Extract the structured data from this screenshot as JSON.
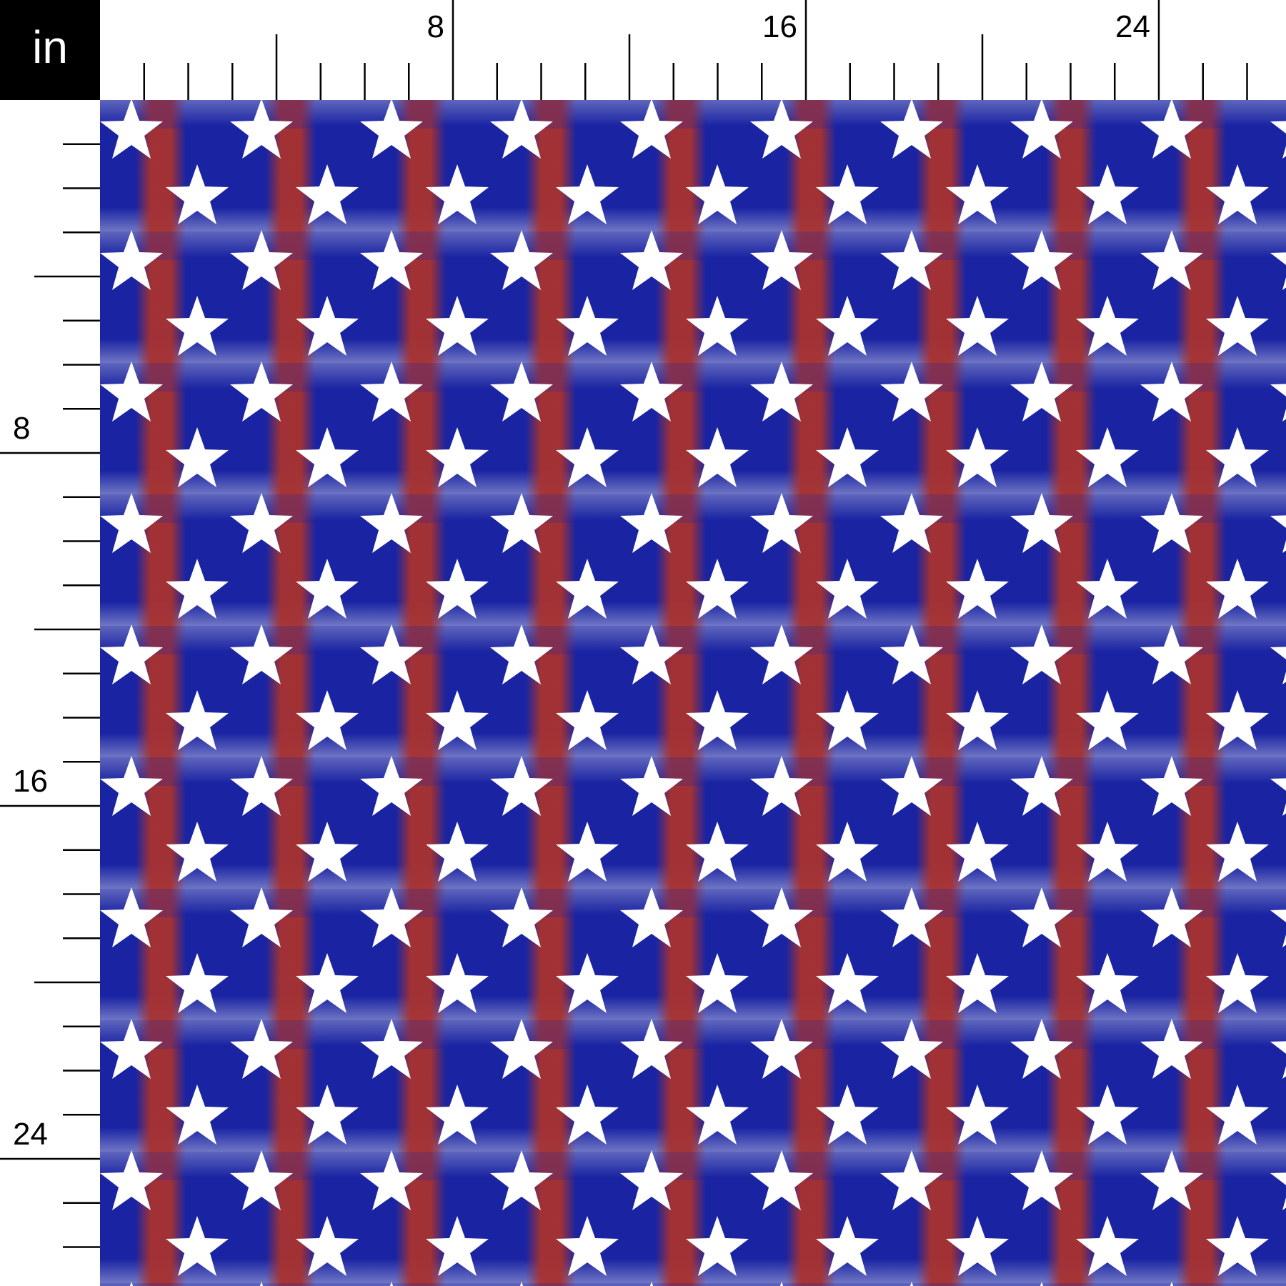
{
  "ruler": {
    "unit": "in",
    "top_labels": [
      {
        "inch": 8,
        "text": "8"
      },
      {
        "inch": 16,
        "text": "16"
      },
      {
        "inch": 24,
        "text": "24"
      }
    ],
    "left_labels": [
      {
        "inch": 8,
        "text": "8"
      },
      {
        "inch": 16,
        "text": "16"
      },
      {
        "inch": 24,
        "text": "24"
      }
    ]
  },
  "fabric": {
    "pattern": "distressed white stars on red and blue tie-dye stripes",
    "colors": {
      "blue": "#1a24a2",
      "red": "#a8322f",
      "star": "#ffffff",
      "faded": "#c9cde6"
    }
  }
}
